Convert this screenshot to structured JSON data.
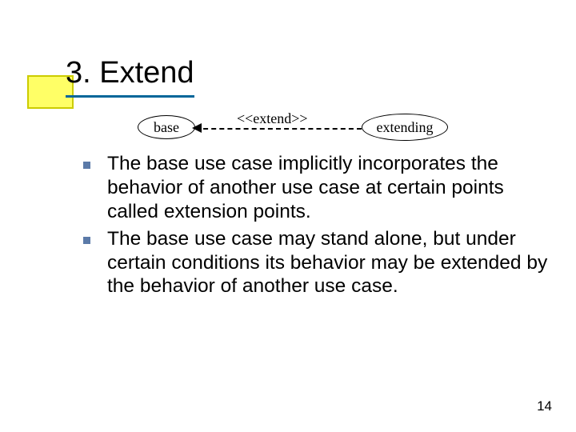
{
  "colors": {
    "accent_border": "#cccc00",
    "accent_fill": "#ffff66",
    "underline": "#006699",
    "bullet": "#5b7aa8",
    "text": "#000000"
  },
  "heading": "3. Extend",
  "diagram": {
    "left_label": "base",
    "right_label": "extending",
    "stereotype": "<<extend>>"
  },
  "bullets": [
    "The base use case implicitly incorporates the behavior of another use case at certain points called extension points.",
    "The base use case may stand alone, but under certain conditions its behavior may be extended by the behavior of another use case."
  ],
  "page_number": "14"
}
